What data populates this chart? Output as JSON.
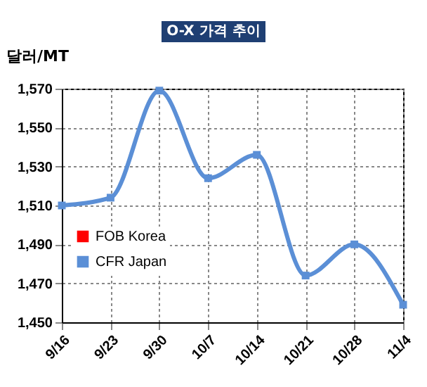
{
  "chart_data": {
    "type": "line",
    "title": "O-X 가격 추이",
    "ylabel": "달러/MT",
    "categories": [
      "9/16",
      "9/23",
      "9/30",
      "10/7",
      "10/14",
      "10/21",
      "10/28",
      "11/4"
    ],
    "series": [
      {
        "name": "FOB Korea",
        "color": "#ff0000",
        "values": [
          null,
          null,
          null,
          null,
          null,
          null,
          null,
          null
        ]
      },
      {
        "name": "CFR Japan",
        "color": "#5b8fd6",
        "values": [
          1510,
          1514,
          1569,
          1524,
          1536,
          1474,
          1490,
          1459
        ]
      }
    ],
    "ylim": [
      1450,
      1570
    ],
    "yticks": [
      {
        "value": 1450,
        "label": "1,450"
      },
      {
        "value": 1470,
        "label": "1,470"
      },
      {
        "value": 1490,
        "label": "1,490"
      },
      {
        "value": 1510,
        "label": "1,510"
      },
      {
        "value": 1530,
        "label": "1,530"
      },
      {
        "value": 1550,
        "label": "1,550"
      },
      {
        "value": 1570,
        "label": "1,570"
      }
    ],
    "grid": true,
    "legend": "left",
    "marker": "square",
    "line_style": "solid"
  }
}
